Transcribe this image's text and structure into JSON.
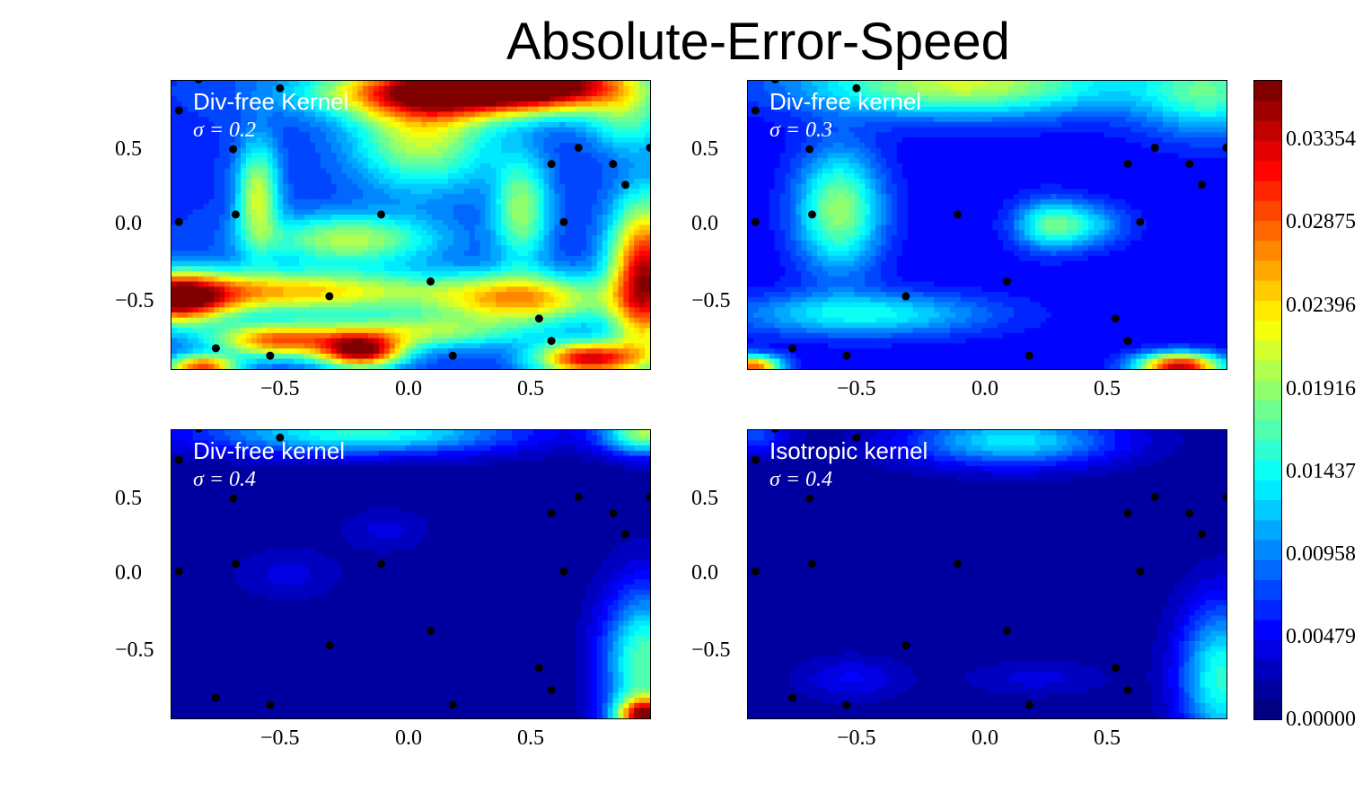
{
  "title": "Absolute-Error-Speed",
  "chart_data": {
    "type": "heatmap",
    "title": "Absolute-Error-Speed",
    "x_ticks": [
      "−0.5",
      "0.0",
      "0.5"
    ],
    "y_ticks": [
      "0.5",
      "0.0",
      "−0.5"
    ],
    "xlim": [
      -0.97,
      0.97
    ],
    "ylim": [
      -0.97,
      0.97
    ],
    "colormap": "jet",
    "colorbar": {
      "range": [
        0.0,
        0.0383
      ],
      "ticks": [
        "0.03354",
        "0.02875",
        "0.02396",
        "0.01916",
        "0.01437",
        "0.00958",
        "0.00479",
        "0.00000"
      ],
      "tick_values": [
        0.03354,
        0.02875,
        0.02396,
        0.01916,
        0.01437,
        0.00958,
        0.00479,
        0.0
      ]
    },
    "sample_points": [
      [
        -0.94,
        0.77
      ],
      [
        -0.86,
        0.98
      ],
      [
        -0.72,
        0.51
      ],
      [
        -0.53,
        0.92
      ],
      [
        -0.71,
        0.07
      ],
      [
        -0.94,
        0.02
      ],
      [
        -0.12,
        0.07
      ],
      [
        0.57,
        0.41
      ],
      [
        0.68,
        0.52
      ],
      [
        0.82,
        0.41
      ],
      [
        0.87,
        0.27
      ],
      [
        0.97,
        0.52
      ],
      [
        0.62,
        0.02
      ],
      [
        0.08,
        -0.38
      ],
      [
        -0.33,
        -0.48
      ],
      [
        0.52,
        -0.63
      ],
      [
        0.57,
        -0.78
      ],
      [
        -0.79,
        -0.83
      ],
      [
        -0.57,
        -0.88
      ],
      [
        0.17,
        -0.88
      ]
    ],
    "panels": [
      {
        "title": "Div-free Kernel",
        "sigma": "σ = 0.2",
        "background": 0.007,
        "blobs": [
          {
            "x": 0.15,
            "y": 0.9,
            "v": 0.036,
            "sx": 0.35,
            "sy": 0.12
          },
          {
            "x": 0.6,
            "y": 0.95,
            "v": 0.03,
            "sx": 0.25,
            "sy": 0.12
          },
          {
            "x": 0.95,
            "y": -0.35,
            "v": 0.036,
            "sx": 0.1,
            "sy": 0.35
          },
          {
            "x": -0.95,
            "y": -0.5,
            "v": 0.034,
            "sx": 0.15,
            "sy": 0.12
          },
          {
            "x": -0.2,
            "y": -0.85,
            "v": 0.035,
            "sx": 0.12,
            "sy": 0.08
          },
          {
            "x": 0.72,
            "y": -0.9,
            "v": 0.034,
            "sx": 0.15,
            "sy": 0.08
          },
          {
            "x": -0.5,
            "y": -0.45,
            "v": 0.026,
            "sx": 0.45,
            "sy": 0.1
          },
          {
            "x": 0.45,
            "y": -0.5,
            "v": 0.026,
            "sx": 0.25,
            "sy": 0.12
          },
          {
            "x": 0.05,
            "y": 0.6,
            "v": 0.022,
            "sx": 0.2,
            "sy": 0.25
          },
          {
            "x": -0.62,
            "y": 0.2,
            "v": 0.022,
            "sx": 0.06,
            "sy": 0.25
          },
          {
            "x": -0.25,
            "y": -0.1,
            "v": 0.021,
            "sx": 0.25,
            "sy": 0.12
          },
          {
            "x": 0.45,
            "y": 0.1,
            "v": 0.02,
            "sx": 0.08,
            "sy": 0.25
          },
          {
            "x": -0.55,
            "y": -0.78,
            "v": 0.028,
            "sx": 0.18,
            "sy": 0.08
          },
          {
            "x": 0.0,
            "y": -0.72,
            "v": 0.02,
            "sx": 0.3,
            "sy": 0.08
          },
          {
            "x": 0.88,
            "y": 0.7,
            "v": 0.016,
            "sx": 0.12,
            "sy": 0.15
          },
          {
            "x": -0.85,
            "y": -0.95,
            "v": 0.03,
            "sx": 0.1,
            "sy": 0.05
          }
        ]
      },
      {
        "title": "Div-free kernel",
        "sigma": "σ = 0.3",
        "background": 0.005,
        "blobs": [
          {
            "x": -0.1,
            "y": 0.95,
            "v": 0.022,
            "sx": 0.45,
            "sy": 0.15
          },
          {
            "x": 0.9,
            "y": 0.9,
            "v": 0.017,
            "sx": 0.2,
            "sy": 0.2
          },
          {
            "x": -0.6,
            "y": 0.1,
            "v": 0.02,
            "sx": 0.12,
            "sy": 0.28
          },
          {
            "x": 0.25,
            "y": 0.0,
            "v": 0.015,
            "sx": 0.1,
            "sy": 0.12
          },
          {
            "x": -0.5,
            "y": -0.6,
            "v": 0.015,
            "sx": 0.35,
            "sy": 0.1
          },
          {
            "x": 0.78,
            "y": -0.95,
            "v": 0.035,
            "sx": 0.12,
            "sy": 0.06
          },
          {
            "x": -0.95,
            "y": -0.95,
            "v": 0.03,
            "sx": 0.08,
            "sy": 0.05
          },
          {
            "x": 0.4,
            "y": 0.0,
            "v": 0.012,
            "sx": 0.12,
            "sy": 0.1
          }
        ]
      },
      {
        "title": "Div-free kernel",
        "sigma": "σ = 0.4",
        "background": 0.0015,
        "blobs": [
          {
            "x": -0.2,
            "y": 0.95,
            "v": 0.016,
            "sx": 0.45,
            "sy": 0.1
          },
          {
            "x": 0.95,
            "y": 0.95,
            "v": 0.02,
            "sx": 0.12,
            "sy": 0.1
          },
          {
            "x": 0.95,
            "y": -0.6,
            "v": 0.018,
            "sx": 0.12,
            "sy": 0.35
          },
          {
            "x": 0.95,
            "y": -0.95,
            "v": 0.03,
            "sx": 0.08,
            "sy": 0.08
          },
          {
            "x": -0.5,
            "y": 0.0,
            "v": 0.004,
            "sx": 0.15,
            "sy": 0.12
          },
          {
            "x": -0.1,
            "y": 0.3,
            "v": 0.004,
            "sx": 0.12,
            "sy": 0.1
          }
        ]
      },
      {
        "title": "Isotropic kernel",
        "sigma": "σ = 0.4",
        "background": 0.0015,
        "blobs": [
          {
            "x": 0.1,
            "y": 0.9,
            "v": 0.014,
            "sx": 0.3,
            "sy": 0.12
          },
          {
            "x": 0.95,
            "y": -0.7,
            "v": 0.016,
            "sx": 0.12,
            "sy": 0.35
          },
          {
            "x": -0.95,
            "y": 0.95,
            "v": 0.008,
            "sx": 0.1,
            "sy": 0.1
          },
          {
            "x": -0.55,
            "y": -0.7,
            "v": 0.005,
            "sx": 0.15,
            "sy": 0.1
          },
          {
            "x": 0.2,
            "y": -0.7,
            "v": 0.004,
            "sx": 0.2,
            "sy": 0.08
          }
        ]
      }
    ]
  }
}
